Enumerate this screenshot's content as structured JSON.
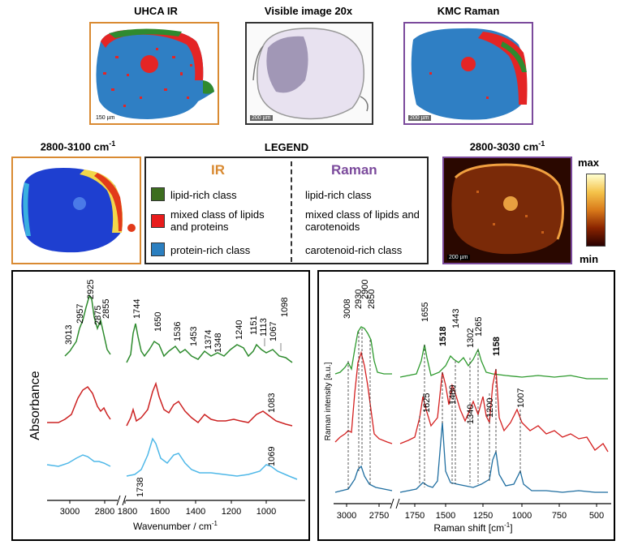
{
  "top_images": {
    "uhca_title": "UHCA IR",
    "visible_title": "Visible image 20x",
    "kmc_title": "KMC Raman",
    "uhca_scale": "150 µm",
    "visible_scale": "200 µm",
    "kmc_scale": "200 µm"
  },
  "mid_images": {
    "ir_band": "2800-3100 cm",
    "ir_band_sup": "-1",
    "raman_band": "2800-3030 cm",
    "raman_band_sup": "-1",
    "raman_scale": "200 µm",
    "cbar_max": "max",
    "cbar_min": "min"
  },
  "legend": {
    "title": "LEGEND",
    "ir_header": "IR",
    "raman_header": "Raman",
    "ir_items": [
      "lipid-rich class",
      "mixed class of lipids and proteins",
      "protein-rich class"
    ],
    "raman_items": [
      "lipid-rich class",
      "mixed class of lipids and carotenoids",
      "carotenoid-rich class"
    ],
    "colors": {
      "lipid": "#3d6e1f",
      "mixed": "#e81c1c",
      "protein": "#2b7fc0",
      "ir_header": "#d98a32",
      "raman_header": "#7b4a9c"
    }
  },
  "chart_data": [
    {
      "type": "line",
      "title": "",
      "xlabel": "Wavenumber / cm",
      "xlabel_sup": "-1",
      "ylabel": "Absorbance",
      "xlim": [
        3100,
        900
      ],
      "axis_break": [
        2800,
        1800
      ],
      "x_ticks": [
        "3000",
        "2800",
        "1800",
        "1600",
        "1400",
        "1200",
        "1000"
      ],
      "series": [
        {
          "name": "lipid-rich class",
          "color": "#2e8b2e"
        },
        {
          "name": "mixed class",
          "color": "#cc2222"
        },
        {
          "name": "protein-rich class",
          "color": "#4fb8e8"
        }
      ],
      "peak_labels": [
        "3013",
        "2957",
        "2925",
        "2875",
        "2855",
        "1744",
        "1650",
        "1536",
        "1453",
        "1374",
        "1348",
        "1240",
        "1151",
        "1113",
        "1067",
        "1098",
        "1083",
        "1738",
        "1069"
      ]
    },
    {
      "type": "line",
      "title": "",
      "xlabel": "Raman shift [cm",
      "xlabel_sup": "-1",
      "xlabel_end": "]",
      "ylabel": "Raman intensity [a.u.]",
      "xlim": [
        3100,
        400
      ],
      "axis_break": [
        2700,
        1800
      ],
      "x_ticks": [
        "3000",
        "2750",
        "1750",
        "1500",
        "1250",
        "1000",
        "750",
        "500"
      ],
      "series": [
        {
          "name": "lipid-rich class",
          "color": "#2e9a2e"
        },
        {
          "name": "mixed class",
          "color": "#d42020"
        },
        {
          "name": "carotenoid-rich class",
          "color": "#1f6ea0"
        }
      ],
      "peak_labels": [
        "3008",
        "2930",
        "2900",
        "2850",
        "1655",
        "1518",
        "1443",
        "1302",
        "1265",
        "1158",
        "1625",
        "1480",
        "1340",
        "1200",
        "1007"
      ]
    }
  ]
}
